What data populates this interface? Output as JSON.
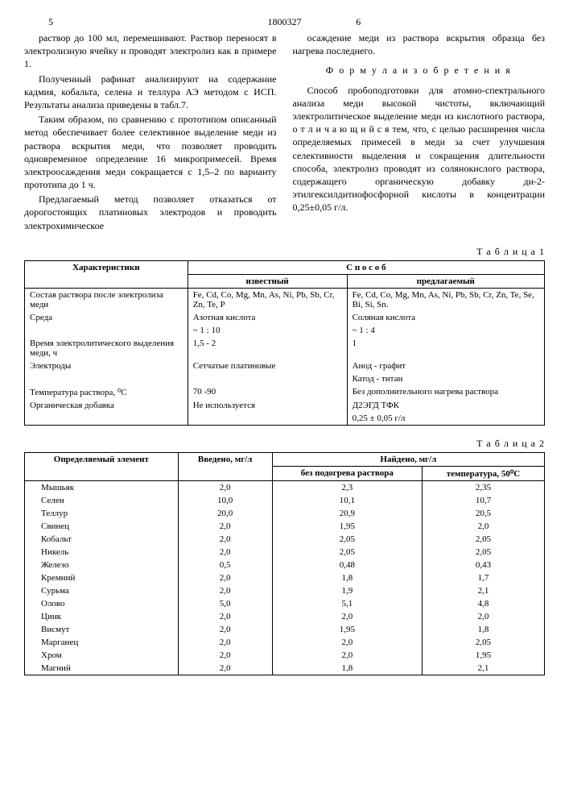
{
  "page_left": "5",
  "page_right": "6",
  "doc_number": "1800327",
  "left_col_paras": [
    "раствор до 100 мл, перемешивают. Раствор переносят в электролизную ячейку и проводят электролиз как в примере 1.",
    "Полученный рафинат анализируют на содержание кадмия, кобальта, селена и теллура АЭ методом с ИСП. Результаты анализа приведены в табл.7.",
    "Таким образом, по сравнению с прототипом описанный метод обеспечивает более селективное выделение меди из раствора вскрытия меди, что позволяет проводить одновременное определение 16 микропримесей. Время электроосаждения меди сокращается с 1,5–2 по варианту прототипа до 1 ч.",
    "Предлагаемый метод позволяет отказаться от дорогостоящих платиновых электродов и проводить электрохимическое"
  ],
  "right_col_top": "осаждение меди из раствора вскрытия образца без нагрева последнего.",
  "formula_title": "Ф о р м у л а  и з о б р е т е н и я",
  "claim": "Способ пробоподготовки для атомно-спектрального анализа меди высокой чистоты, включающий электролитическое выделение меди из кислотного раствора, о т л и ч а ю щ и й с я  тем, что, с целью расширения числа определяемых примесей в меди за счет улучшения селективности выделения и сокращения длительности способа, электролиз проводят из солянокислого раствора, содержащего органическую добавку ди-2-этилгексилдитиофосфорной кислоты в концентрации 0,25±0,05 г/л.",
  "table1_label": "Т а б л и ц а 1",
  "table1": {
    "header_char": "Характеристики",
    "header_method": "С п о с о б",
    "header_known": "известный",
    "header_proposed": "предлагаемый",
    "rows": [
      {
        "c": "Состав раствора после электролиза меди",
        "k": "Fe, Cd, Co, Mg, Mn, As, Ni, Pb, Sb, Cr, Zn, Te, P",
        "p": "Fe, Cd, Co, Mg, Mn, As, Ni, Pb, Sb, Cr, Zn, Te, Se, Bi, Si, Sn."
      },
      {
        "c": "Среда",
        "k": "Азотная кислота",
        "p": "Соляная кислота"
      },
      {
        "c": " ",
        "k": "~ 1 : 10",
        "p": "~ 1 : 4"
      },
      {
        "c": "Время электролитического выделения меди, ч",
        "k": "1,5 - 2",
        "p": "1"
      },
      {
        "c": "Электроды",
        "k": "Сетчатые платиновые",
        "p": "Анод - графит"
      },
      {
        "c": " ",
        "k": " ",
        "p": "Катод - титан"
      },
      {
        "c": "Температура раствора, ⁰С",
        "k": "70 -90",
        "p": "Без дополнительного нагрева раствора"
      },
      {
        "c": "Органическая добавка",
        "k": "Не используется",
        "p": "Д2ЭГД ТФК"
      },
      {
        "c": " ",
        "k": " ",
        "p": "0,25 ± 0,05 г/л"
      }
    ]
  },
  "table2_label": "Т а б л и ц а 2",
  "table2": {
    "h_element": "Определяемый элемент",
    "h_introduced": "Введено, мг/л",
    "h_found": "Найдено, мг/л",
    "h_noheat": "без подогрева раствора",
    "h_temp": "температура, 50⁰С",
    "rows": [
      {
        "e": "Мышьяк",
        "i": "2,0",
        "n": "2,3",
        "t": "2,35"
      },
      {
        "e": "Селен",
        "i": "10,0",
        "n": "10,1",
        "t": "10,7"
      },
      {
        "e": "Теллур",
        "i": "20,0",
        "n": "20,9",
        "t": "20,5"
      },
      {
        "e": "Свинец",
        "i": "2,0",
        "n": "1,95",
        "t": "2,0"
      },
      {
        "e": "Кобальт",
        "i": "2,0",
        "n": "2,05",
        "t": "2,05"
      },
      {
        "e": "Никель",
        "i": "2,0",
        "n": "2,05",
        "t": "2,05"
      },
      {
        "e": "Железо",
        "i": "0,5",
        "n": "0,48",
        "t": "0,43"
      },
      {
        "e": "Кремний",
        "i": "2,0",
        "n": "1,8",
        "t": "1,7"
      },
      {
        "e": "Сурьма",
        "i": "2,0",
        "n": "1,9",
        "t": "2,1"
      },
      {
        "e": "Олово",
        "i": "5,0",
        "n": "5,1",
        "t": "4,8"
      },
      {
        "e": "Цинк",
        "i": "2,0",
        "n": "2,0",
        "t": "2,0"
      },
      {
        "e": "Висмут",
        "i": "2,0",
        "n": "1,95",
        "t": "1,8"
      },
      {
        "e": "Марганец",
        "i": "2,0",
        "n": "2,0",
        "t": "2,05"
      },
      {
        "e": "Хром",
        "i": "2,0",
        "n": "2,0",
        "t": "1,95"
      },
      {
        "e": "Магний",
        "i": "2,0",
        "n": "1,8",
        "t": "2,1"
      }
    ]
  }
}
